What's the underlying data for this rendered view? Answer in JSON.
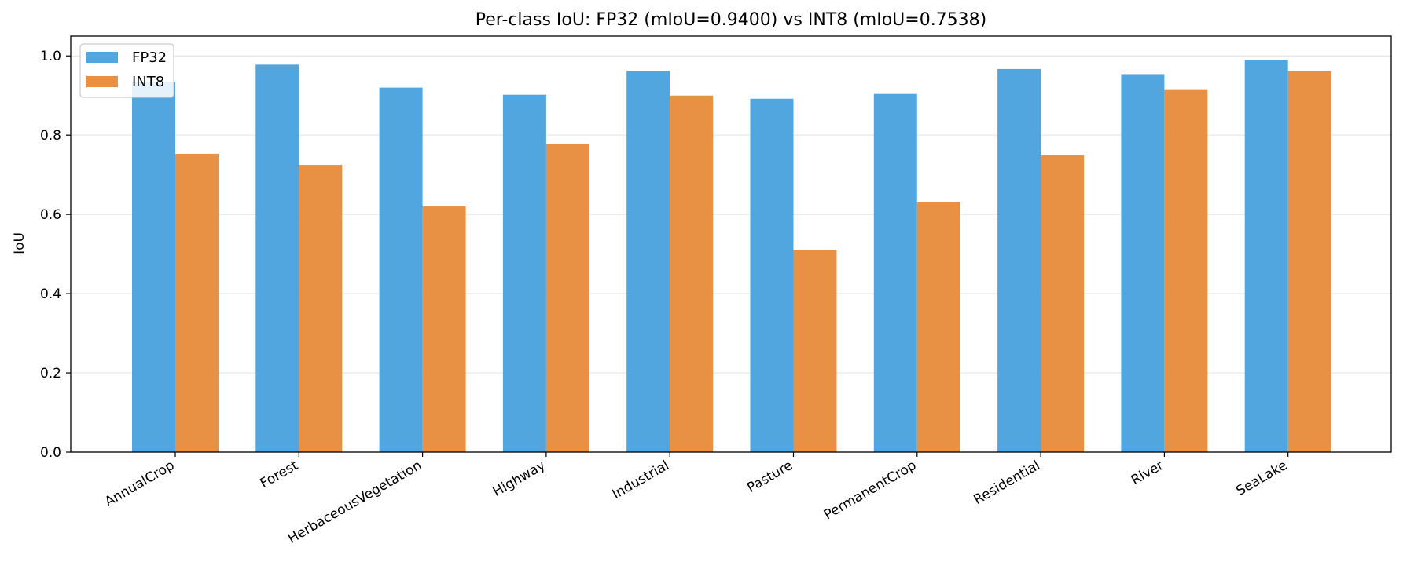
{
  "chart_data": {
    "type": "bar",
    "title": "Per-class IoU: FP32 (mIoU=0.9400) vs INT8 (mIoU=0.7538)",
    "xlabel": "",
    "ylabel": "IoU",
    "ylim": [
      0,
      1.05
    ],
    "yticks": [
      "0.0",
      "0.2",
      "0.4",
      "0.6",
      "0.8",
      "1.0"
    ],
    "ytick_values": [
      0,
      0.2,
      0.4,
      0.6,
      0.8,
      1.0
    ],
    "grid": "y",
    "legend_position": "top-left",
    "categories": [
      "AnnualCrop",
      "Forest",
      "HerbaceousVegetation",
      "Highway",
      "Industrial",
      "Pasture",
      "PermanentCrop",
      "Residential",
      "River",
      "SeaLake"
    ],
    "series": [
      {
        "name": "FP32",
        "color": "#52a6e0",
        "values": [
          0.935,
          0.978,
          0.92,
          0.902,
          0.962,
          0.892,
          0.904,
          0.967,
          0.954,
          0.99
        ]
      },
      {
        "name": "INT8",
        "color": "#e89144",
        "values": [
          0.753,
          0.725,
          0.62,
          0.777,
          0.9,
          0.51,
          0.632,
          0.749,
          0.914,
          0.962
        ]
      }
    ]
  }
}
